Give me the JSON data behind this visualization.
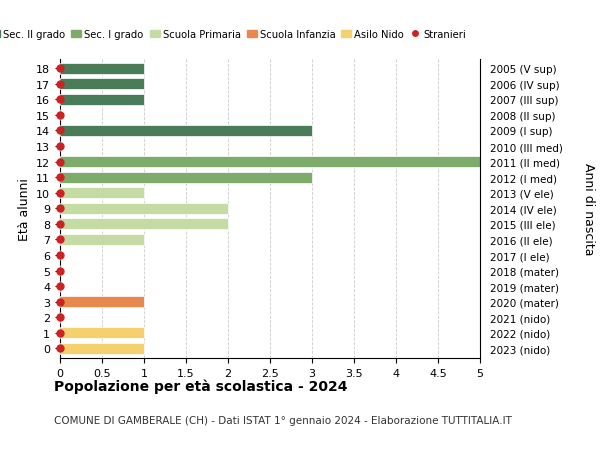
{
  "ages": [
    18,
    17,
    16,
    15,
    14,
    13,
    12,
    11,
    10,
    9,
    8,
    7,
    6,
    5,
    4,
    3,
    2,
    1,
    0
  ],
  "years": [
    "2005 (V sup)",
    "2006 (IV sup)",
    "2007 (III sup)",
    "2008 (II sup)",
    "2009 (I sup)",
    "2010 (III med)",
    "2011 (II med)",
    "2012 (I med)",
    "2013 (V ele)",
    "2014 (IV ele)",
    "2015 (III ele)",
    "2016 (II ele)",
    "2017 (I ele)",
    "2018 (mater)",
    "2019 (mater)",
    "2020 (mater)",
    "2021 (nido)",
    "2022 (nido)",
    "2023 (nido)"
  ],
  "values": [
    1,
    1,
    1,
    0,
    3,
    0,
    5,
    3,
    1,
    2,
    2,
    1,
    0,
    0,
    0,
    1,
    0,
    1,
    1
  ],
  "colors": [
    "#4a7c59",
    "#4a7c59",
    "#4a7c59",
    "#4a7c59",
    "#4a7c59",
    "#7dab6a",
    "#7dab6a",
    "#7dab6a",
    "#c5dba4",
    "#c5dba4",
    "#c5dba4",
    "#c5dba4",
    "#c5dba4",
    "#e8884a",
    "#e8884a",
    "#e8884a",
    "#f5d06e",
    "#f5d06e",
    "#f5d06e"
  ],
  "stranieri_dots_ages": [
    18,
    17,
    16,
    15,
    14,
    13,
    12,
    11,
    10,
    9,
    8,
    7,
    6,
    5,
    4,
    3,
    2,
    1,
    0
  ],
  "xlim": [
    0,
    5.0
  ],
  "xticks": [
    0,
    0.5,
    1.0,
    1.5,
    2.0,
    2.5,
    3.0,
    3.5,
    4.0,
    4.5,
    5.0
  ],
  "ylabel_left": "Età alunni",
  "ylabel_right": "Anni di nascita",
  "legend_labels": [
    "Sec. II grado",
    "Sec. I grado",
    "Scuola Primaria",
    "Scuola Infanzia",
    "Asilo Nido",
    "Stranieri"
  ],
  "legend_colors": [
    "#4a7c59",
    "#7dab6a",
    "#c5dba4",
    "#e8884a",
    "#f5d06e",
    "#cc2222"
  ],
  "title": "Popolazione per età scolastica - 2024",
  "subtitle": "COMUNE DI GAMBERALE (CH) - Dati ISTAT 1° gennaio 2024 - Elaborazione TUTTITALIA.IT",
  "bar_height": 0.7,
  "background_color": "#ffffff",
  "grid_color": "#cccccc",
  "dot_color": "#cc2222",
  "dot_size": 25,
  "ylim_low": -0.6,
  "ylim_high": 18.6
}
